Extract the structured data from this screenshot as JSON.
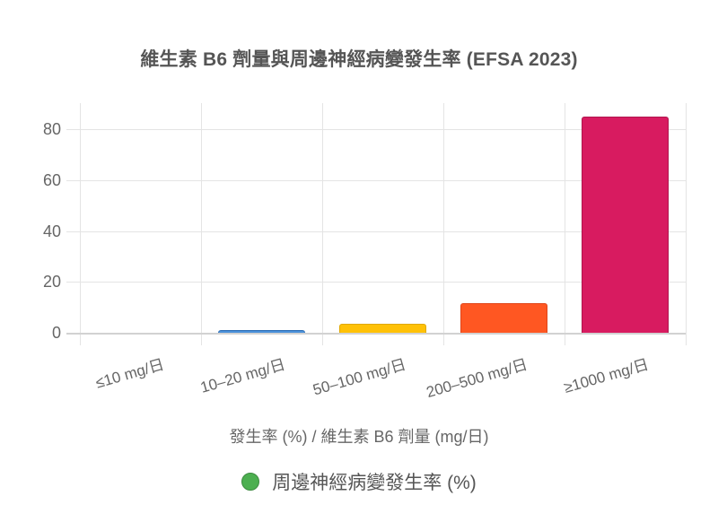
{
  "chart": {
    "title": "維生素 B6 劑量與周邊神經病變發生率 (EFSA 2023)",
    "x_axis_title": "發生率 (%) / 維生素 B6 劑量 (mg/日)",
    "y_ticks": [
      "0",
      "20",
      "40",
      "60",
      "80"
    ],
    "x_ticks": [
      "≤10 mg/日",
      "10–20 mg/日",
      "50–100 mg/日",
      "200–500 mg/日",
      "≥1000 mg/日"
    ],
    "legend": {
      "label": "周邊神經病變發生率 (%)",
      "color": "#4caf50"
    },
    "bar_colors": [
      "#9e9e9e",
      "#4a90d9",
      "#ffc107",
      "#ff5722",
      "#d81b60"
    ],
    "bar_border_colors": [
      "#7a7a7a",
      "#2f6fb5",
      "#e0a800",
      "#e0461a",
      "#b0154d"
    ]
  },
  "chart_data": {
    "type": "bar",
    "title": "維生素 B6 劑量與周邊神經病變發生率 (EFSA 2023)",
    "xlabel": "發生率 (%) / 維生素 B6 劑量 (mg/日)",
    "ylabel": "",
    "categories": [
      "≤10 mg/日",
      "10–20 mg/日",
      "50–100 mg/日",
      "200–500 mg/日",
      "≥1000 mg/日"
    ],
    "series": [
      {
        "name": "周邊神經病變發生率 (%)",
        "values": [
          0,
          1.2,
          3.5,
          11.7,
          85
        ]
      }
    ],
    "ylim": [
      0,
      90
    ],
    "y_ticks": [
      0,
      20,
      40,
      60,
      80
    ],
    "grid": true,
    "legend_position": "bottom"
  }
}
